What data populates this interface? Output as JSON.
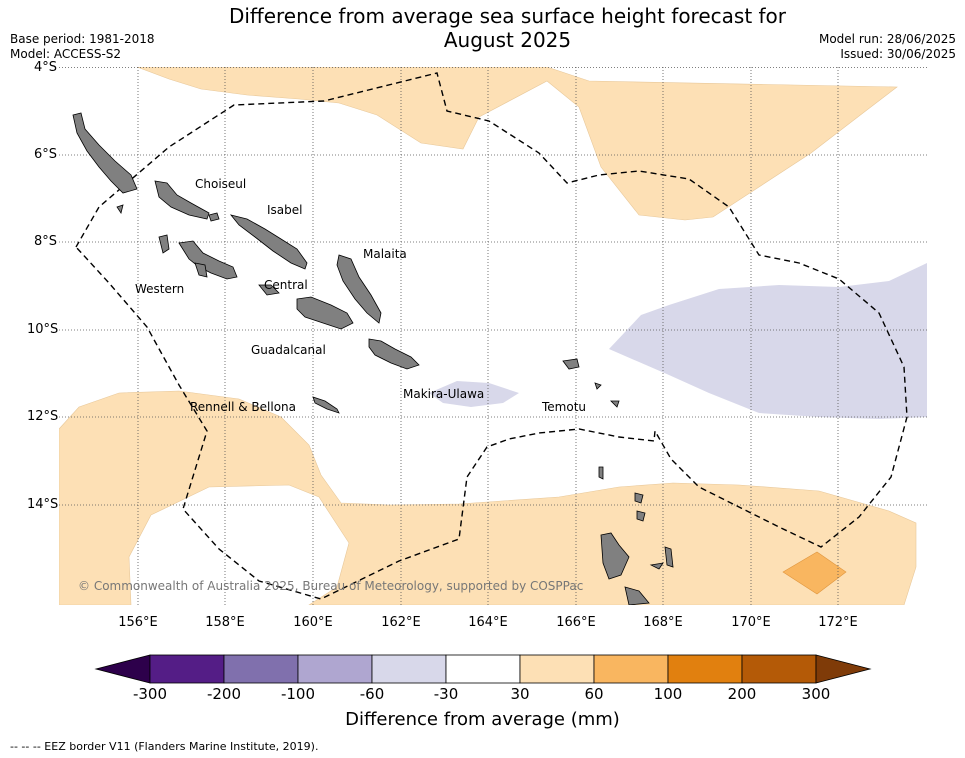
{
  "title": "Difference from average sea surface height forecast for August 2025",
  "title_lines": [
    "Difference from average sea surface height forecast for",
    "August 2025"
  ],
  "meta_left": [
    "Base period: 1981-2018",
    "Model: ACCESS-S2"
  ],
  "meta_right": [
    "Model run: 28/06/2025",
    "Issued: 30/06/2025"
  ],
  "map": {
    "lon_range": [
      154.2,
      174.0
    ],
    "lat_range": [
      -16.3,
      -4.0
    ],
    "lat_ticks": [
      "4°S",
      "6°S",
      "8°S",
      "10°S",
      "12°S",
      "14°S"
    ],
    "lon_ticks": [
      "156°E",
      "158°E",
      "160°E",
      "162°E",
      "164°E",
      "166°E",
      "168°E",
      "170°E",
      "172°E"
    ],
    "gridlines": true,
    "land_color": "#808080",
    "places": [
      {
        "name": "Choiseul",
        "lon": 157.2,
        "lat": -6.7
      },
      {
        "name": "Isabel",
        "lon": 159.1,
        "lat": -7.3
      },
      {
        "name": "Malaita",
        "lon": 161.2,
        "lat": -8.3
      },
      {
        "name": "Western",
        "lon": 156.0,
        "lat": -9.1
      },
      {
        "name": "Central",
        "lon": 159.0,
        "lat": -9.0
      },
      {
        "name": "Guadalcanal",
        "lon": 158.6,
        "lat": -10.5
      },
      {
        "name": "Makira-Ulawa",
        "lon": 162.1,
        "lat": -11.5
      },
      {
        "name": "Rennell & Bellona",
        "lon": 157.1,
        "lat": -11.8
      },
      {
        "name": "Temotu",
        "lon": 165.3,
        "lat": -11.8
      }
    ],
    "copyright": "© Commonwealth of Australia 2025, Bureau of Meteorology, supported by COSPPac"
  },
  "colorbar": {
    "label": "Difference from average (mm)",
    "ticks": [
      "-300",
      "-200",
      "-100",
      "-60",
      "-30",
      "30",
      "60",
      "100",
      "200",
      "300"
    ],
    "colors": [
      "#541d86",
      "#8070ad",
      "#afa6d0",
      "#d8d8ea",
      "#ffffff",
      "#fde0b5",
      "#f9b660",
      "#e1800f",
      "#b45a07"
    ],
    "under_color": "#2d004b",
    "over_color": "#7f3b08"
  },
  "legend_note": "--  --  -- EEZ border V11 (Flanders Marine Institute, 2019)."
}
